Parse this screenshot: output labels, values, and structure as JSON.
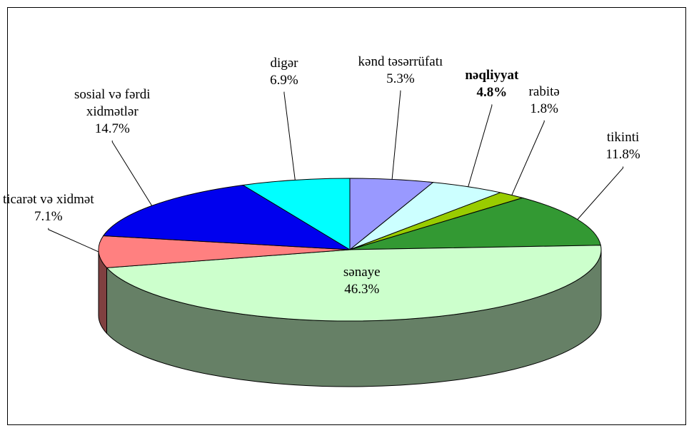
{
  "chart_data": {
    "type": "pie3d",
    "categories": [
      "kənd təsərrüfatı",
      "nəqliyyat",
      "rabitə",
      "tikinti",
      "sənaye",
      "ticarət və xidmət",
      "sosial və fərdi\nxidmətlər",
      "digər"
    ],
    "values": [
      5.3,
      4.8,
      1.8,
      11.8,
      46.3,
      7.1,
      14.7,
      6.9
    ],
    "value_labels": [
      "5.3%",
      "4.8%",
      "1.8%",
      "11.8%",
      "46.3%",
      "7.1%",
      "14.7%",
      "6.9%"
    ],
    "colors": [
      "#9999ff",
      "#ccffff",
      "#99cc00",
      "#339933",
      "#ccffcc",
      "#ff8080",
      "#0000ee",
      "#00ffff"
    ],
    "label_weight": [
      "normal",
      "bold",
      "normal",
      "normal",
      "normal",
      "normal",
      "normal",
      "normal"
    ]
  }
}
